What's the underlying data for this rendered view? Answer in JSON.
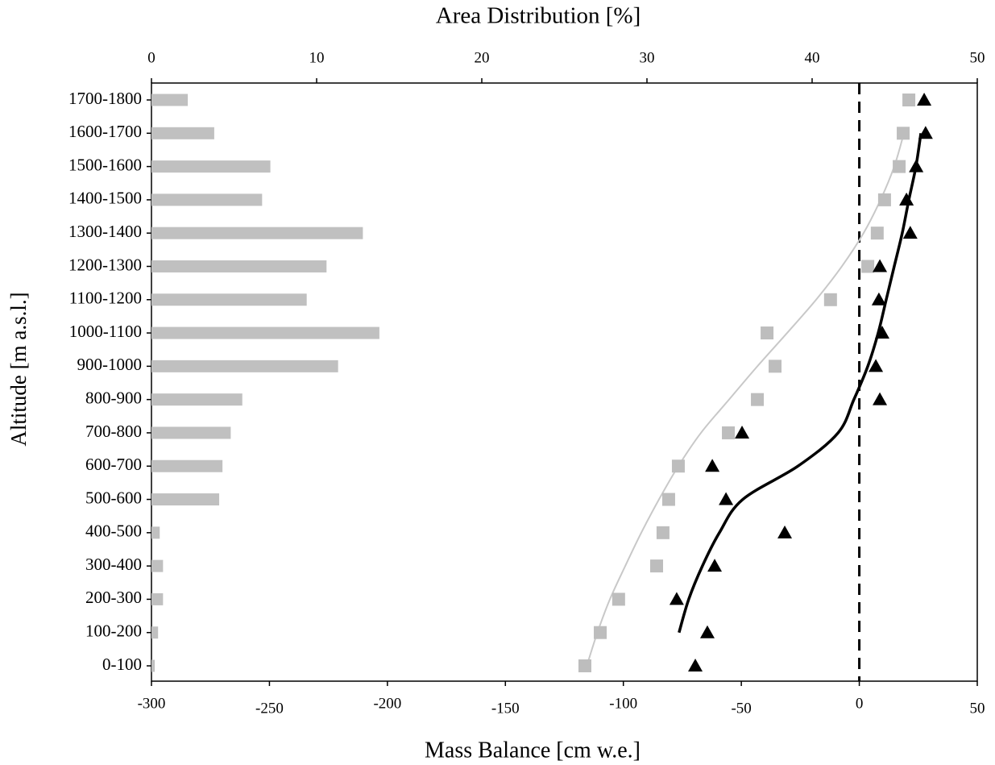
{
  "chart_data": {
    "type": "combo",
    "title": "Area Distribution [%]",
    "x_label": "Mass Balance [cm w.e.]",
    "y_label": "Altitude [m a.s.l.]",
    "categories": [
      "1700-1800",
      "1600-1700",
      "1500-1600",
      "1400-1500",
      "1300-1400",
      "1200-1300",
      "1100-1200",
      "1000-1100",
      "900-1000",
      "800-900",
      "700-800",
      "600-700",
      "500-600",
      "400-500",
      "300-400",
      "200-300",
      "100-200",
      "0-100"
    ],
    "x2lim": [
      0,
      50
    ],
    "x2ticks": [
      0,
      10,
      20,
      30,
      40,
      50
    ],
    "xlim": [
      -300,
      50
    ],
    "xticks": [
      -300,
      -250,
      -200,
      -150,
      -100,
      -50,
      0,
      50
    ],
    "reference_x": 0,
    "series": [
      {
        "type": "bar",
        "axis": "x2",
        "color": "#c0c0c0",
        "values": [
          2.2,
          3.8,
          7.2,
          6.7,
          12.8,
          10.6,
          9.4,
          13.8,
          11.3,
          5.5,
          4.8,
          4.3,
          4.1,
          0.5,
          0.7,
          0.7,
          0.4,
          0.2
        ]
      },
      {
        "type": "scatter",
        "marker": "square",
        "color": "#bdbdbd",
        "values": [
          21,
          18.6,
          16.9,
          10.7,
          7.6,
          3.6,
          -12.2,
          -39.1,
          -35.7,
          -43.2,
          -55.5,
          -76.7,
          -80.8,
          -83.2,
          -85.9,
          -102,
          -109.8,
          -116.3
        ]
      },
      {
        "type": "scatter",
        "marker": "triangle",
        "color": "#000000",
        "values": [
          27.5,
          28.1,
          24.1,
          20,
          21.6,
          8.7,
          8.3,
          9.7,
          7,
          8.7,
          -49.7,
          -62.3,
          -56.5,
          -31.6,
          -61.3,
          -77.4,
          -64.4,
          -69.5
        ]
      },
      {
        "type": "line",
        "color": "#c8c8c8",
        "width": 2,
        "values": [
          null,
          18.9,
          14.8,
          9,
          1.8,
          -7.4,
          -18.3,
          -30.6,
          -43.2,
          -55.2,
          -67.1,
          -76.7,
          -84.9,
          -92.4,
          -99.2,
          -105.7,
          -111,
          -115.5
        ]
      },
      {
        "type": "line",
        "color": "#000000",
        "width": 3.5,
        "values": [
          null,
          26.1,
          24,
          21,
          18.2,
          14.8,
          11.4,
          8,
          3.6,
          -2.3,
          -9,
          -26,
          -49.4,
          -59.3,
          -66.5,
          -72.3,
          -76.4,
          null
        ]
      }
    ]
  }
}
